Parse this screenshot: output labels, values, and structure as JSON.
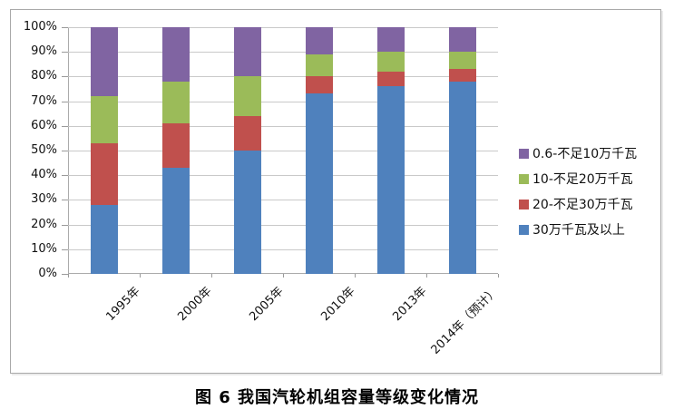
{
  "caption": "图 6  我国汽轮机组容量等级变化情况",
  "chart_data": {
    "type": "bar",
    "stacked": true,
    "percent_stacked": true,
    "title": "",
    "xlabel": "",
    "ylabel": "",
    "ylim": [
      0,
      100
    ],
    "unit": "%",
    "grid": true,
    "legend_position": "right",
    "categories": [
      "1995年",
      "2000年",
      "2005年",
      "2010年",
      "2013年",
      "2014年（预计）"
    ],
    "y_ticks": [
      "100%",
      "90%",
      "80%",
      "70%",
      "60%",
      "50%",
      "40%",
      "30%",
      "20%",
      "10%",
      "0%"
    ],
    "series": [
      {
        "name": "30万千瓦及以上",
        "color": "#4F81BD",
        "values": [
          28,
          43,
          50,
          73,
          76,
          78
        ]
      },
      {
        "name": "20-不足30万千瓦",
        "color": "#C0504D",
        "values": [
          25,
          18,
          14,
          7,
          6,
          5
        ]
      },
      {
        "name": "10-不足20万千瓦",
        "color": "#9BBB59",
        "values": [
          19,
          17,
          16,
          9,
          8,
          7
        ]
      },
      {
        "name": "0.6-不足10万千瓦",
        "color": "#8064A2",
        "values": [
          28,
          22,
          20,
          11,
          10,
          10
        ]
      }
    ],
    "legend_order": [
      "0.6-不足10万千瓦",
      "10-不足20万千瓦",
      "20-不足30万千瓦",
      "30万千瓦及以上"
    ]
  }
}
